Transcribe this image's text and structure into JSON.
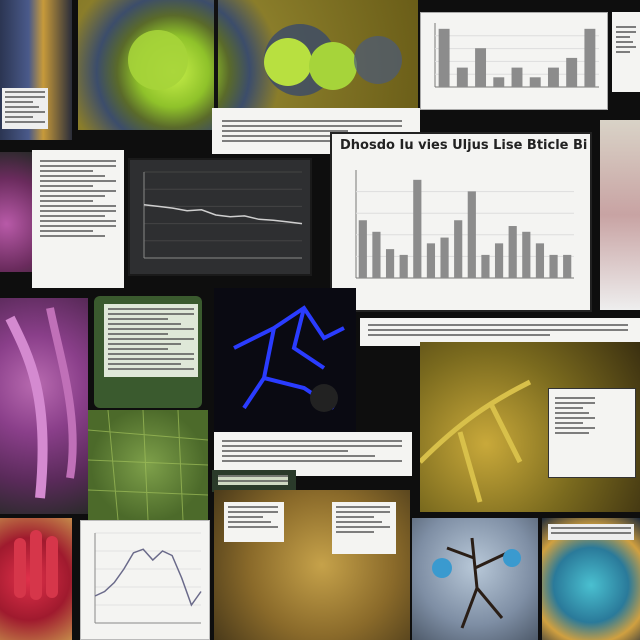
{
  "collage": {
    "slide_heading": "Dhosdo Iu vies Uljus Lise Bticle Bis Ue U",
    "colors": {
      "background": "#0e0e0e",
      "paper": "#f4f4f2",
      "tissue_olive": "#8a7d2a",
      "cell_green": "#a6d43a",
      "vessel_blue": "#2a3cff",
      "tissue_magenta": "#9a3f8a",
      "chart_bar": "#8c8c8c"
    },
    "charts": [
      {
        "name": "bar-chart-top-right",
        "type": "bar",
        "values": [
          3,
          1,
          2,
          0.5,
          1,
          0.5,
          1,
          1.5,
          3
        ]
      },
      {
        "name": "bar-chart-center",
        "type": "bar",
        "values": [
          5,
          4,
          2.5,
          2,
          8.5,
          3,
          3.5,
          5,
          7.5,
          2,
          3,
          4.5,
          4,
          3,
          2,
          2
        ]
      },
      {
        "name": "line-chart-dark",
        "type": "line",
        "values": [
          0.62,
          0.6,
          0.58,
          0.55,
          0.56,
          0.5,
          0.48,
          0.49,
          0.45,
          0.44,
          0.42,
          0.4
        ]
      },
      {
        "name": "line-chart-bottom-left",
        "type": "line",
        "values": [
          0.3,
          0.35,
          0.45,
          0.6,
          0.78,
          0.82,
          0.7,
          0.8,
          0.75,
          0.5,
          0.2,
          0.35
        ]
      }
    ]
  }
}
